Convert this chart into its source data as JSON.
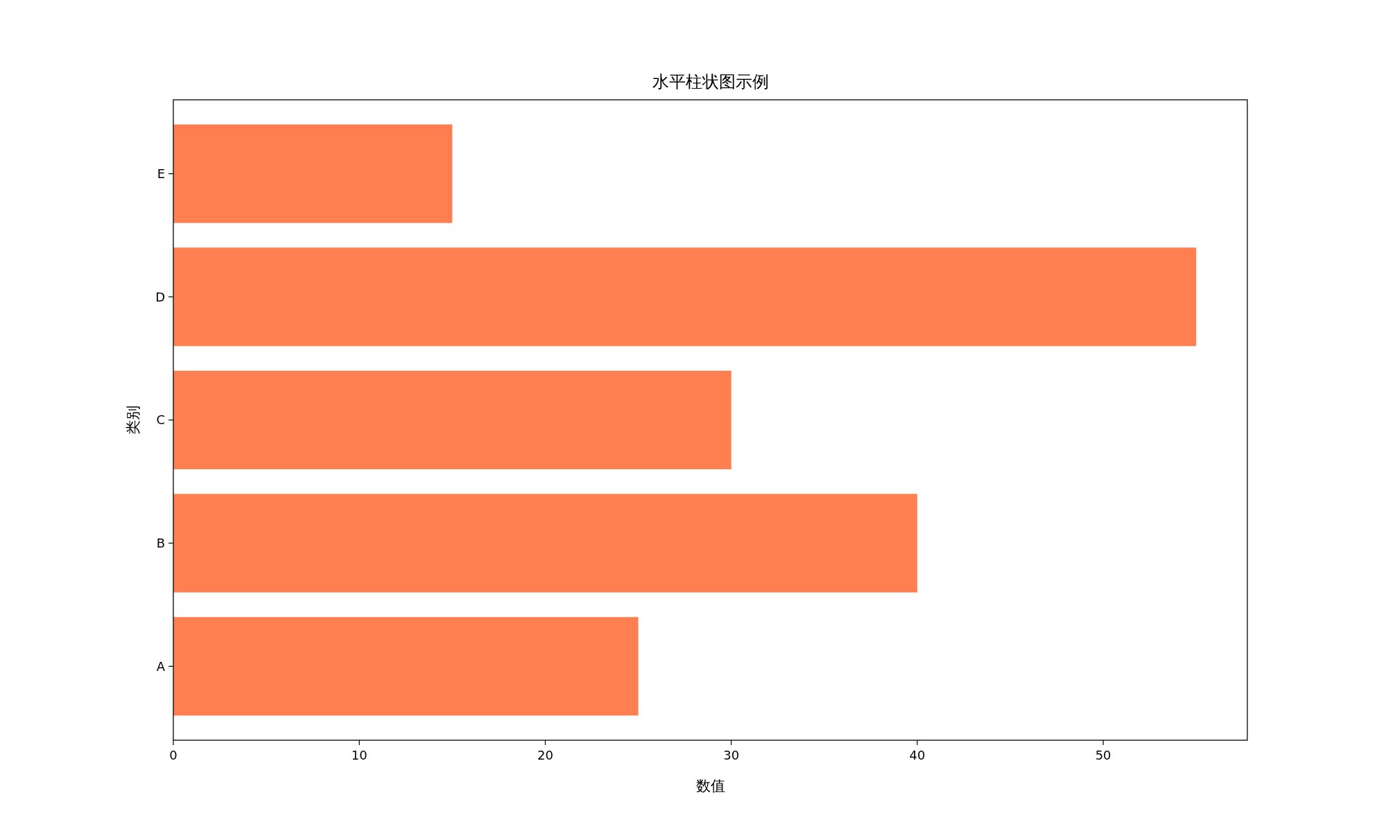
{
  "chart_data": {
    "type": "bar",
    "orientation": "horizontal",
    "title": "水平柱状图示例",
    "xlabel": "数值",
    "ylabel": "类别",
    "categories": [
      "E",
      "D",
      "C",
      "B",
      "A"
    ],
    "values": [
      15,
      55,
      30,
      40,
      25
    ],
    "color": "#ff7f50",
    "xlim": [
      0,
      57.75
    ],
    "xticks": [
      0,
      10,
      20,
      30,
      40,
      50
    ],
    "grid": false
  }
}
